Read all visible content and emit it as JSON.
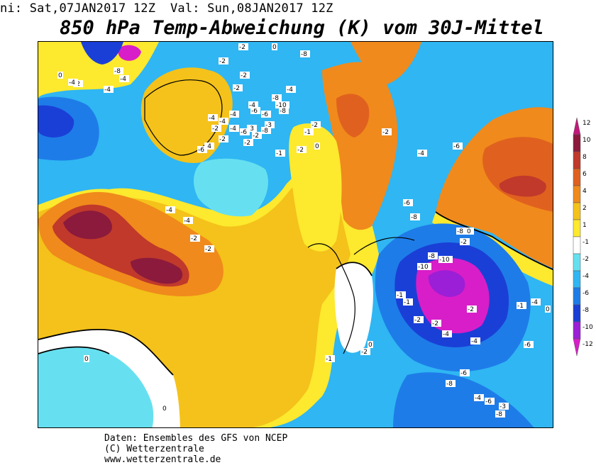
{
  "header": {
    "run_text": "ni: Sat,07JAN2017 12Z  Val: Sun,08JAN2017 12Z"
  },
  "title": "850 hPa Temp-Abweichung (K) vom 30J-Mittel",
  "legend": {
    "values": [
      "12",
      "10",
      "8",
      "6",
      "4",
      "2",
      "1",
      "-1",
      "-2",
      "-4",
      "-6",
      "-8",
      "-10",
      "-12"
    ],
    "colors": [
      "#c2187a",
      "#8b1a3c",
      "#c0392b",
      "#e0611f",
      "#f08a1c",
      "#f4c21a",
      "#fde92e",
      "#ffffff",
      "#66e0f0",
      "#2fb6f3",
      "#1e7ce8",
      "#1a3fd6",
      "#9b1fd6",
      "#d81ec8"
    ]
  },
  "map": {
    "contour_labels": [
      "-2",
      "-8",
      "-8",
      "-4",
      "-4",
      "-2",
      "0",
      "-2",
      "0",
      "-2",
      "-2",
      "-4",
      "-8",
      "-10",
      "-8",
      "-6",
      "-6",
      "-4",
      "-4",
      "-2",
      "-4",
      "-4",
      "-2",
      "-4",
      "-6",
      "-3",
      "-8",
      "-3",
      "-6",
      "-2",
      "-2",
      "-4",
      "-4",
      "-1",
      "-2",
      "0",
      "-2",
      "-4",
      "-4",
      "-2",
      "-2",
      "-1",
      "-2",
      "-4",
      "-6",
      "-6",
      "-8",
      "-10",
      "-8",
      "-10",
      "-8",
      "-10",
      "-2",
      "-2",
      "-1",
      "-1",
      "-4",
      "-4",
      "-2",
      "-2",
      "-6",
      "-8",
      "-4",
      "-6",
      "-8",
      "-3",
      "-6",
      "-4",
      "-1",
      "0",
      "0",
      "-2",
      "-1",
      "0",
      "0",
      "-2"
    ],
    "colors": {
      "neg_strong": "#d81ec8",
      "neg10": "#9b1fd6",
      "neg8": "#1a3fd6",
      "neg6": "#1e7ce8",
      "neg4": "#2fb6f3",
      "neg2": "#66e0f0",
      "zero": "#ffffff",
      "pos1": "#fde92e",
      "pos2": "#f4c21a",
      "pos4": "#f08a1c",
      "pos6": "#e0611f",
      "pos8": "#c0392b",
      "pos10": "#8b1a3c"
    }
  },
  "footer": {
    "line1": "Daten: Ensembles des GFS von NCEP",
    "line2": "(C) Wetterzentrale",
    "line3": "www.wetterzentrale.de"
  }
}
